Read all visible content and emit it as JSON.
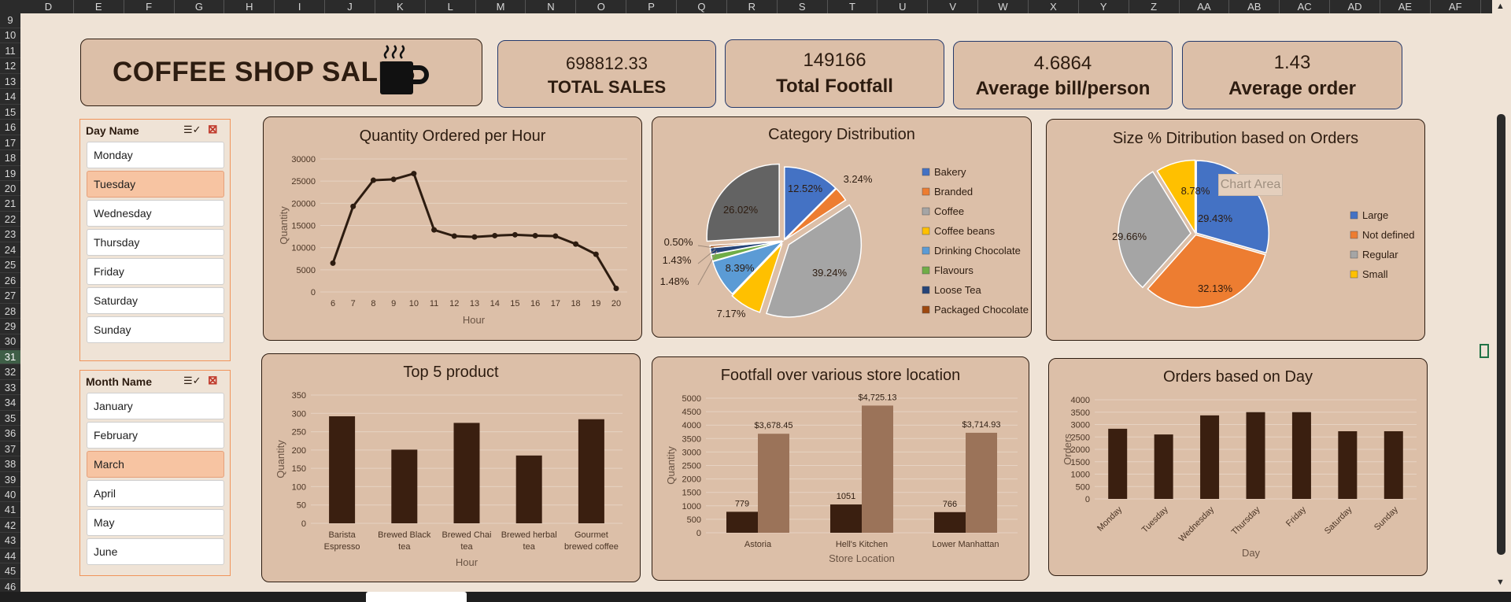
{
  "columns": [
    "D",
    "E",
    "F",
    "G",
    "H",
    "I",
    "J",
    "K",
    "L",
    "M",
    "N",
    "O",
    "P",
    "Q",
    "R",
    "S",
    "T",
    "U",
    "V",
    "W",
    "X",
    "Y",
    "Z",
    "AA",
    "AB",
    "AC",
    "AD",
    "AE",
    "AF"
  ],
  "rows": [
    "9",
    "10",
    "11",
    "12",
    "13",
    "14",
    "15",
    "16",
    "17",
    "18",
    "19",
    "20",
    "21",
    "22",
    "23",
    "24",
    "25",
    "26",
    "27",
    "28",
    "29",
    "30",
    "31",
    "32",
    "33",
    "34",
    "35",
    "36",
    "37",
    "38",
    "39",
    "40",
    "41",
    "42",
    "43",
    "44",
    "45",
    "46"
  ],
  "selected_row": "31",
  "dashboard_title": "COFFEE SHOP SALES",
  "kpis": [
    {
      "value": "698812.33",
      "label": "TOTAL SALES"
    },
    {
      "value": "149166",
      "label": "Total Footfall"
    },
    {
      "value": "4.6864",
      "label": "Average bill/person"
    },
    {
      "value": "1.43",
      "label": "Average order"
    }
  ],
  "slicers": [
    {
      "title": "Day Name",
      "items": [
        "Monday",
        "Tuesday",
        "Wednesday",
        "Thursday",
        "Friday",
        "Saturday",
        "Sunday"
      ],
      "selected": "Tuesday"
    },
    {
      "title": "Month Name",
      "items": [
        "January",
        "February",
        "March",
        "April",
        "May",
        "June"
      ],
      "selected": "March"
    }
  ],
  "icons": {
    "multiselect": "multi-select-icon",
    "clear": "clear-filter-icon",
    "cup": "coffee-cup-icon"
  },
  "colors": {
    "dark_brown": "#3a1f10",
    "light_brown": "#9b7359",
    "panel": "#dcbfa8",
    "background": "#efe3d6",
    "slicer_selected": "#f7c4a2",
    "kpi_border": "#263a6c"
  },
  "chart_data": [
    {
      "type": "line",
      "title": "Quantity Ordered per Hour",
      "xlabel": "Hour",
      "ylabel": "Quantity",
      "x": [
        6,
        7,
        8,
        9,
        10,
        11,
        12,
        13,
        14,
        15,
        16,
        17,
        18,
        19,
        20
      ],
      "values": [
        6500,
        19300,
        25200,
        25400,
        26700,
        14000,
        12600,
        12400,
        12700,
        12900,
        12700,
        12600,
        10800,
        8500,
        800
      ],
      "yticks": [
        0,
        5000,
        10000,
        15000,
        20000,
        25000,
        30000
      ],
      "ylim": [
        0,
        30000
      ]
    },
    {
      "type": "pie",
      "title": "Category Distribution",
      "legend": [
        "Bakery",
        "Branded",
        "Coffee",
        "Coffee beans",
        "Drinking Chocolate",
        "Flavours",
        "Loose Tea",
        "Packaged Chocolate"
      ],
      "slices": [
        {
          "name": "Coffee",
          "pct": 39.24,
          "label": "39.24%",
          "color": "#a5a5a5"
        },
        {
          "name": "Coffee beans",
          "pct": 7.17,
          "label": "7.17%",
          "color": "#ffc000"
        },
        {
          "name": "Drinking Chocolate",
          "pct": 8.39,
          "label": "8.39%",
          "color": "#5b9bd5"
        },
        {
          "name": "Flavours",
          "pct": 1.48,
          "label": "1.48%",
          "color": "#70ad47"
        },
        {
          "name": "Loose Tea",
          "pct": 1.43,
          "label": "1.43%",
          "color": "#264478"
        },
        {
          "name": "Packaged Chocolate",
          "pct": 0.5,
          "label": "0.50%",
          "color": "#9e480e"
        },
        {
          "name": "Tea",
          "pct": 26.02,
          "label": "26.02%",
          "color": "#636363"
        },
        {
          "name": "Bakery",
          "pct": 12.52,
          "label": "12.52%",
          "color": "#4472c4"
        },
        {
          "name": "Branded",
          "pct": 3.24,
          "label": "3.24%",
          "color": "#ed7d31"
        }
      ],
      "legend_colors": [
        "#4472c4",
        "#ed7d31",
        "#a5a5a5",
        "#ffc000",
        "#5b9bd5",
        "#70ad47",
        "#264478",
        "#9e480e"
      ]
    },
    {
      "type": "pie",
      "title": "Size % Ditribution based on Orders",
      "tooltip": "Chart Area",
      "legend": [
        "Large",
        "Not defined",
        "Regular",
        "Small"
      ],
      "slices": [
        {
          "name": "Large",
          "pct": 29.43,
          "label": "29.43%",
          "color": "#4472c4"
        },
        {
          "name": "Not defined",
          "pct": 32.13,
          "label": "32.13%",
          "color": "#ed7d31"
        },
        {
          "name": "Regular",
          "pct": 29.66,
          "label": "29.66%",
          "color": "#a5a5a5"
        },
        {
          "name": "Small",
          "pct": 8.78,
          "label": "8.78%",
          "color": "#ffc000"
        }
      ],
      "legend_colors": [
        "#4472c4",
        "#ed7d31",
        "#a5a5a5",
        "#ffc000"
      ]
    },
    {
      "type": "bar",
      "title": "Top 5 product",
      "xlabel": "Hour",
      "ylabel": "Quantity",
      "categories": [
        [
          "Barista",
          "Espresso"
        ],
        [
          "Brewed Black",
          "tea"
        ],
        [
          "Brewed Chai",
          "tea"
        ],
        [
          "Brewed herbal",
          "tea"
        ],
        [
          "Gourmet",
          "brewed coffee"
        ]
      ],
      "values": [
        292,
        201,
        274,
        185,
        284
      ],
      "yticks": [
        0,
        50,
        100,
        150,
        200,
        250,
        300,
        350
      ],
      "ylim": [
        0,
        350
      ]
    },
    {
      "type": "bar",
      "title": "Footfall over various store location",
      "xlabel": "Store Location",
      "ylabel": "Quantity",
      "categories": [
        "Astoria",
        "Hell's Kitchen",
        "Lower Manhattan"
      ],
      "series": [
        {
          "values": [
            779,
            1051,
            766
          ],
          "labels": [
            "779",
            "1051",
            "766"
          ]
        },
        {
          "values": [
            3678.45,
            4725.13,
            3714.93
          ],
          "labels": [
            "$3,678.45",
            "$4,725.13",
            "$3,714.93"
          ]
        }
      ],
      "yticks": [
        0,
        500,
        1000,
        1500,
        2000,
        2500,
        3000,
        3500,
        4000,
        4500,
        5000
      ],
      "ylim": [
        0,
        5000
      ]
    },
    {
      "type": "bar",
      "title": "Orders based on Day",
      "xlabel": "Day",
      "ylabel": "Orders",
      "categories": [
        "Monday",
        "Tuesday",
        "Wednesday",
        "Thursday",
        "Friday",
        "Saturday",
        "Sunday"
      ],
      "values": [
        2830,
        2600,
        3370,
        3500,
        3500,
        2730,
        2730
      ],
      "yticks": [
        0,
        500,
        1000,
        1500,
        2000,
        2500,
        3000,
        3500,
        4000
      ],
      "ylim": [
        0,
        4000
      ]
    }
  ]
}
